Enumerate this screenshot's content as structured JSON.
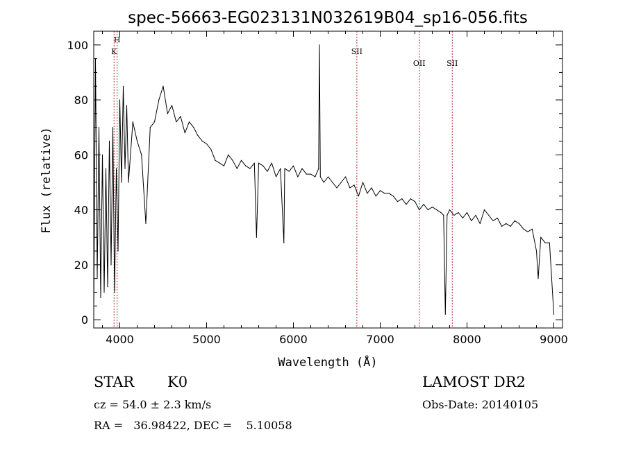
{
  "chart_data": {
    "type": "line",
    "title": "spec-56663-EG023131N032619B04_sp16-056.fits",
    "xlabel": "Wavelength (Å)",
    "ylabel": "Flux (relative)",
    "xlim": [
      3700,
      9100
    ],
    "ylim": [
      -3,
      105
    ],
    "x_ticks": [
      4000,
      5000,
      6000,
      7000,
      8000,
      9000
    ],
    "y_ticks": [
      0,
      20,
      40,
      60,
      80,
      100
    ],
    "grid": false,
    "colors": {
      "spectrum": "#000000",
      "lines": "#b03030"
    },
    "spectral_lines": [
      {
        "label": "H",
        "wavelength": 3969,
        "stack": 0
      },
      {
        "label": "K",
        "wavelength": 3934,
        "stack": 1
      },
      {
        "label": "SII",
        "wavelength": 6731,
        "stack": 2
      },
      {
        "label": "OII",
        "wavelength": 7450,
        "stack": 3
      },
      {
        "label": "SII",
        "wavelength": 7830,
        "stack": 3
      }
    ],
    "series": [
      {
        "x": [
          3700,
          3720,
          3740,
          3760,
          3780,
          3800,
          3820,
          3840,
          3860,
          3880,
          3900,
          3920,
          3940,
          3960,
          3980,
          4000,
          4020,
          4040,
          4060,
          4080,
          4100,
          4150,
          4200,
          4250,
          4300,
          4350,
          4400,
          4450,
          4500,
          4550,
          4600,
          4650,
          4700,
          4750,
          4800,
          4850,
          4900,
          4950,
          5000,
          5050,
          5100,
          5150,
          5200,
          5250,
          5300,
          5350,
          5400,
          5450,
          5500,
          5550,
          5575,
          5600,
          5650,
          5700,
          5750,
          5800,
          5850,
          5890,
          5900,
          5950,
          6000,
          6050,
          6100,
          6150,
          6200,
          6250,
          6290,
          6300,
          6310,
          6350,
          6400,
          6450,
          6500,
          6550,
          6600,
          6650,
          6700,
          6750,
          6800,
          6850,
          6900,
          6950,
          7000,
          7050,
          7100,
          7150,
          7200,
          7250,
          7300,
          7350,
          7400,
          7450,
          7500,
          7550,
          7600,
          7650,
          7700,
          7730,
          7750,
          7770,
          7800,
          7850,
          7900,
          7950,
          8000,
          8050,
          8100,
          8150,
          8200,
          8250,
          8300,
          8350,
          8400,
          8450,
          8500,
          8550,
          8600,
          8650,
          8700,
          8750,
          8800,
          8820,
          8850,
          8900,
          8950,
          9000
        ],
        "y": [
          2,
          95,
          15,
          70,
          8,
          60,
          10,
          55,
          12,
          65,
          20,
          70,
          10,
          55,
          25,
          80,
          50,
          85,
          55,
          78,
          50,
          72,
          65,
          60,
          35,
          70,
          72,
          80,
          85,
          75,
          78,
          72,
          74,
          68,
          72,
          70,
          67,
          65,
          64,
          62,
          58,
          57,
          56,
          60,
          58,
          55,
          58,
          56,
          55,
          57,
          30,
          57,
          56,
          54,
          57,
          52,
          55,
          28,
          55,
          54,
          56,
          52,
          55,
          53,
          53,
          52,
          55,
          100,
          52,
          50,
          52,
          50,
          48,
          50,
          52,
          48,
          49,
          45,
          50,
          46,
          48,
          45,
          47,
          46,
          46,
          45,
          43,
          44,
          42,
          44,
          43,
          40,
          42,
          40,
          41,
          40,
          39,
          38,
          2,
          38,
          40,
          38,
          39,
          37,
          39,
          36,
          38,
          35,
          40,
          38,
          36,
          37,
          34,
          35,
          34,
          36,
          35,
          33,
          32,
          33,
          25,
          15,
          30,
          28,
          28,
          2
        ]
      }
    ]
  },
  "info": {
    "star_label": "STAR",
    "spectral_type": "K0",
    "survey": "LAMOST DR2",
    "cz": "cz = 54.0 ± 2.3 km/s",
    "obs_date": "Obs-Date: 20140105",
    "coords": "RA =   36.98422, DEC =    5.10058"
  }
}
